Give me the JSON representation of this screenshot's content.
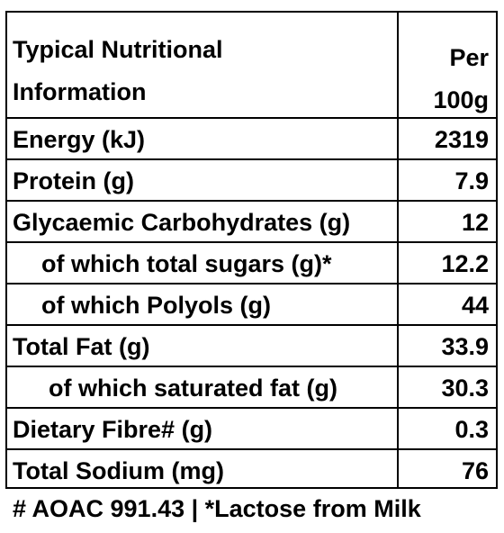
{
  "table": {
    "header_label": "Typical Nutritional\nInformation",
    "header_value": "Per\n100g",
    "rows": [
      {
        "label": "Energy (kJ)",
        "value": "2319"
      },
      {
        "label": "Protein (g)",
        "value": "7.9"
      },
      {
        "label": "Glycaemic Carbohydrates (g)",
        "value": "12"
      },
      {
        "label": "of which total sugars (g)*",
        "value": "12.2"
      },
      {
        "label": "of which Polyols (g)",
        "value": "44"
      },
      {
        "label": "Total Fat (g)",
        "value": "33.9"
      },
      {
        "label": "of which saturated fat (g)",
        "value": "30.3"
      },
      {
        "label": "Dietary Fibre# (g)",
        "value": "0.3"
      },
      {
        "label": "Total Sodium (mg)",
        "value": "76"
      }
    ]
  },
  "footnote": "# AOAC 991.43 | *Lactose from Milk"
}
